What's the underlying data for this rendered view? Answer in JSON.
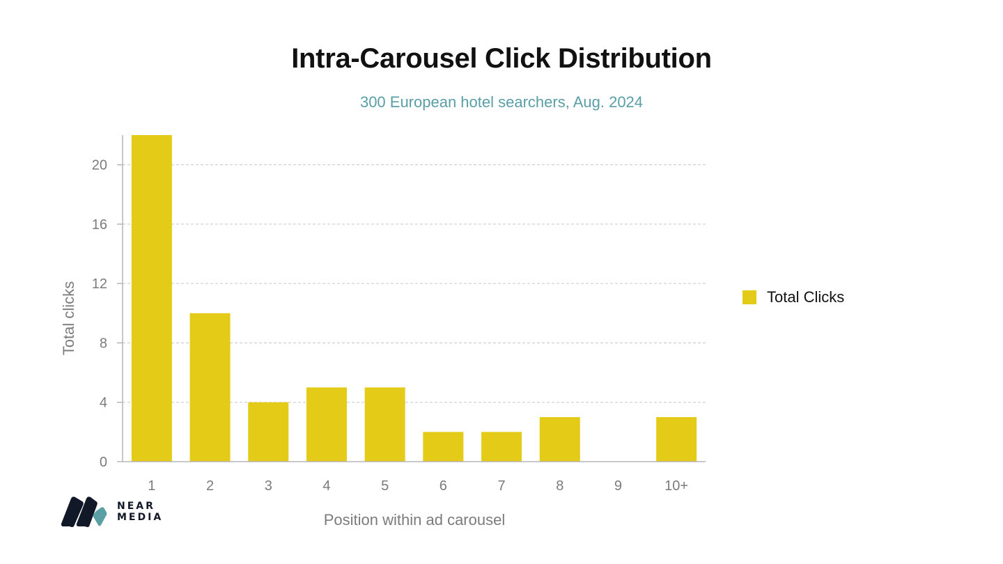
{
  "colors": {
    "bar": "#e3cb17",
    "axis": "#b5b5b5",
    "grid": "#c8c8c8",
    "tick_text": "#7b7b7b",
    "subtitle": "#5a9ea6",
    "logo_dark": "#111827",
    "logo_accent": "#5a9ea6"
  },
  "logo": {
    "line1": "NEAR",
    "line2": "MEDIA"
  },
  "chart_data": {
    "type": "bar",
    "title": "Intra-Carousel Click Distribution",
    "subtitle": "300 European hotel searchers, Aug. 2024",
    "xlabel": "Position within ad carousel",
    "ylabel": "Total clicks",
    "categories": [
      "1",
      "2",
      "3",
      "4",
      "5",
      "6",
      "7",
      "8",
      "9",
      "10+"
    ],
    "series": [
      {
        "name": "Total Clicks",
        "values": [
          22,
          10,
          4,
          5,
          5,
          2,
          2,
          3,
          0,
          3
        ]
      }
    ],
    "yticks": [
      0,
      4,
      8,
      12,
      16,
      20
    ],
    "ylim": [
      0,
      22
    ],
    "grid": true,
    "legend": "right"
  }
}
